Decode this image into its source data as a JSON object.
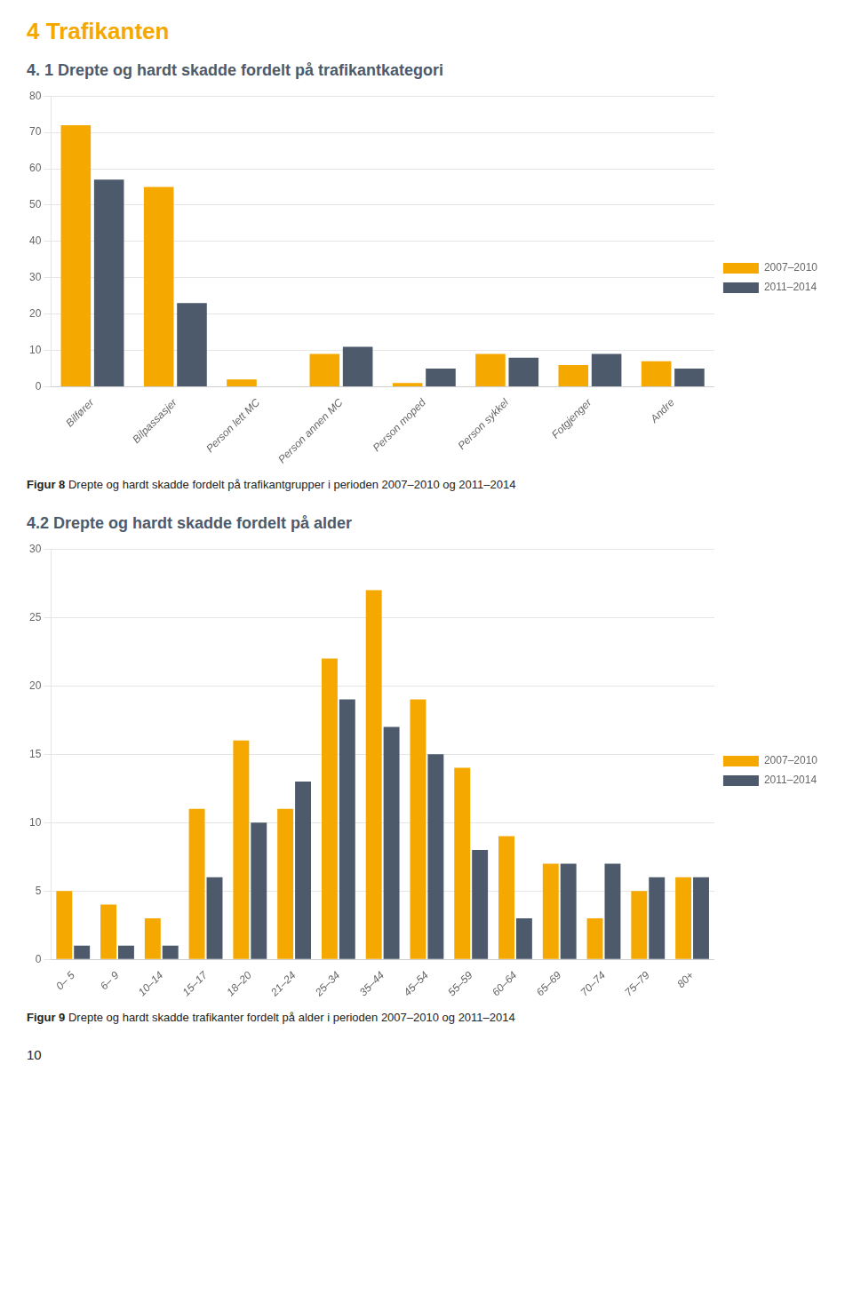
{
  "title": "4 Trafikanten",
  "annotations": [
    "10"
  ],
  "chart_data": [
    {
      "type": "bar",
      "title": "4. 1 Drepte og hardt skadde fordelt på trafikantkategori",
      "annotations": [
        "Figur 8 Drepte og hardt skadde fordelt på trafikantgrupper i perioden 2007–2010 og 2011–2014"
      ],
      "categories": [
        "Bilfører",
        "Bilpassasjer",
        "Person lett MC",
        "Person annen MC",
        "Person moped",
        "Person sykkel",
        "Fotgjenger",
        "Andre"
      ],
      "series": [
        {
          "name": "2007–2010",
          "color": "#F5A800",
          "values": [
            72,
            55,
            2,
            9,
            1,
            9,
            6,
            7
          ]
        },
        {
          "name": "2011–2014",
          "color": "#4D5A6B",
          "values": [
            57,
            23,
            0,
            11,
            5,
            8,
            9,
            5
          ]
        }
      ],
      "ylim": [
        0,
        80
      ],
      "yticks": [
        0,
        10,
        20,
        30,
        40,
        50,
        60,
        70,
        80
      ],
      "grid": true,
      "legend": "right"
    },
    {
      "type": "bar",
      "title": "4.2 Drepte og hardt skadde fordelt på alder",
      "annotations": [
        "Figur 9 Drepte og hardt skadde trafikanter fordelt på alder i perioden 2007–2010 og 2011–2014"
      ],
      "categories": [
        "0– 5",
        "6– 9",
        "10–14",
        "15–17",
        "18–20",
        "21–24",
        "25–34",
        "35–44",
        "45–54",
        "55–59",
        "60–64",
        "65–69",
        "70–74",
        "75–79",
        "80+"
      ],
      "series": [
        {
          "name": "2007–2010",
          "color": "#F5A800",
          "values": [
            5,
            4,
            3,
            11,
            16,
            11,
            22,
            27,
            19,
            14,
            9,
            7,
            3,
            5,
            6
          ]
        },
        {
          "name": "2011–2014",
          "color": "#4D5A6B",
          "values": [
            1,
            1,
            1,
            6,
            10,
            13,
            19,
            17,
            15,
            8,
            3,
            7,
            7,
            6,
            6
          ]
        }
      ],
      "ylim": [
        0,
        30
      ],
      "yticks": [
        0,
        5,
        10,
        15,
        20,
        25,
        30
      ],
      "grid": true,
      "legend": "right"
    }
  ]
}
